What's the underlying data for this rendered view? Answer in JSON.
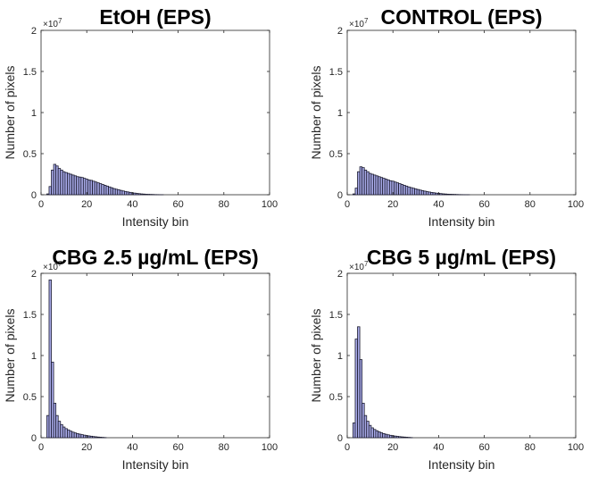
{
  "colors": {
    "bar_fill": "#a6a8e6",
    "bar_edge": "#1a1a2e",
    "axis": "#262626"
  },
  "chart_data": [
    {
      "type": "bar",
      "title": "EtOH (EPS)",
      "xlabel": "Intensity bin",
      "ylabel": "Number of pixels",
      "xlim": [
        0,
        100
      ],
      "ylim": [
        0,
        2
      ],
      "y_multiplier": "×10",
      "y_exponent": "7",
      "xticks": [
        "0",
        "20",
        "40",
        "60",
        "80",
        "100"
      ],
      "yticks": [
        "0",
        "0.5",
        "1",
        "1.5",
        "2"
      ],
      "x": [
        1,
        2,
        3,
        4,
        5,
        6,
        7,
        8,
        9,
        10,
        11,
        12,
        13,
        14,
        15,
        16,
        17,
        18,
        19,
        20,
        21,
        22,
        23,
        24,
        25,
        26,
        27,
        28,
        29,
        30,
        31,
        32,
        33,
        34,
        35,
        36,
        37,
        38,
        39,
        40,
        41,
        42,
        43,
        44,
        45,
        46,
        47,
        48,
        49,
        50,
        51,
        52,
        53
      ],
      "values": [
        0.0,
        0.0,
        0.01,
        0.1,
        0.3,
        0.37,
        0.35,
        0.32,
        0.3,
        0.28,
        0.27,
        0.26,
        0.25,
        0.24,
        0.23,
        0.22,
        0.215,
        0.21,
        0.2,
        0.19,
        0.18,
        0.175,
        0.165,
        0.155,
        0.145,
        0.135,
        0.125,
        0.115,
        0.105,
        0.095,
        0.085,
        0.075,
        0.067,
        0.06,
        0.053,
        0.046,
        0.04,
        0.034,
        0.029,
        0.024,
        0.02,
        0.016,
        0.013,
        0.01,
        0.008,
        0.006,
        0.005,
        0.004,
        0.003,
        0.002,
        0.0015,
        0.001,
        0.0005
      ]
    },
    {
      "type": "bar",
      "title": "CONTROL (EPS)",
      "xlabel": "Intensity bin",
      "ylabel": "Number of pixels",
      "xlim": [
        0,
        100
      ],
      "ylim": [
        0,
        2
      ],
      "y_multiplier": "×10",
      "y_exponent": "7",
      "xticks": [
        "0",
        "20",
        "40",
        "60",
        "80",
        "100"
      ],
      "yticks": [
        "0",
        "0.5",
        "1",
        "1.5",
        "2"
      ],
      "x": [
        1,
        2,
        3,
        4,
        5,
        6,
        7,
        8,
        9,
        10,
        11,
        12,
        13,
        14,
        15,
        16,
        17,
        18,
        19,
        20,
        21,
        22,
        23,
        24,
        25,
        26,
        27,
        28,
        29,
        30,
        31,
        32,
        33,
        34,
        35,
        36,
        37,
        38,
        39,
        40,
        41,
        42,
        43,
        44,
        45,
        46,
        47,
        48,
        49,
        50,
        51,
        52,
        53
      ],
      "values": [
        0.0,
        0.0,
        0.01,
        0.08,
        0.28,
        0.34,
        0.33,
        0.3,
        0.28,
        0.26,
        0.25,
        0.24,
        0.23,
        0.22,
        0.21,
        0.2,
        0.19,
        0.18,
        0.17,
        0.165,
        0.155,
        0.145,
        0.135,
        0.125,
        0.115,
        0.105,
        0.095,
        0.087,
        0.079,
        0.071,
        0.064,
        0.057,
        0.05,
        0.044,
        0.038,
        0.033,
        0.028,
        0.024,
        0.02,
        0.017,
        0.014,
        0.011,
        0.009,
        0.007,
        0.006,
        0.005,
        0.004,
        0.003,
        0.002,
        0.0015,
        0.001,
        0.0007,
        0.0004
      ]
    },
    {
      "type": "bar",
      "title": "CBG 2.5 µg/mL (EPS)",
      "xlabel": "Intensity bin",
      "ylabel": "Number of pixels",
      "xlim": [
        0,
        100
      ],
      "ylim": [
        0,
        2
      ],
      "y_multiplier": "×10",
      "y_exponent": "7",
      "xticks": [
        "0",
        "20",
        "40",
        "60",
        "80",
        "100"
      ],
      "yticks": [
        "0",
        "0.5",
        "1",
        "1.5",
        "2"
      ],
      "x": [
        1,
        2,
        3,
        4,
        5,
        6,
        7,
        8,
        9,
        10,
        11,
        12,
        13,
        14,
        15,
        16,
        17,
        18,
        19,
        20,
        21,
        22,
        23,
        24,
        25,
        26,
        27,
        28
      ],
      "values": [
        0.0,
        0.0,
        0.27,
        1.92,
        0.92,
        0.42,
        0.27,
        0.2,
        0.16,
        0.13,
        0.11,
        0.095,
        0.08,
        0.068,
        0.058,
        0.05,
        0.043,
        0.037,
        0.031,
        0.026,
        0.022,
        0.018,
        0.014,
        0.011,
        0.008,
        0.006,
        0.004,
        0.002
      ]
    },
    {
      "type": "bar",
      "title": "CBG 5 µg/mL (EPS)",
      "xlabel": "Intensity bin",
      "ylabel": "Number of pixels",
      "xlim": [
        0,
        100
      ],
      "ylim": [
        0,
        2
      ],
      "y_multiplier": "×10",
      "y_exponent": "7",
      "xticks": [
        "0",
        "20",
        "40",
        "60",
        "80",
        "100"
      ],
      "yticks": [
        "0",
        "0.5",
        "1",
        "1.5",
        "2"
      ],
      "x": [
        1,
        2,
        3,
        4,
        5,
        6,
        7,
        8,
        9,
        10,
        11,
        12,
        13,
        14,
        15,
        16,
        17,
        18,
        19,
        20,
        21,
        22,
        23,
        24,
        25,
        26,
        27,
        28
      ],
      "values": [
        0.0,
        0.0,
        0.18,
        1.2,
        1.35,
        0.95,
        0.42,
        0.27,
        0.2,
        0.15,
        0.12,
        0.1,
        0.085,
        0.072,
        0.06,
        0.05,
        0.042,
        0.035,
        0.029,
        0.024,
        0.02,
        0.016,
        0.013,
        0.01,
        0.008,
        0.006,
        0.004,
        0.002
      ]
    }
  ]
}
